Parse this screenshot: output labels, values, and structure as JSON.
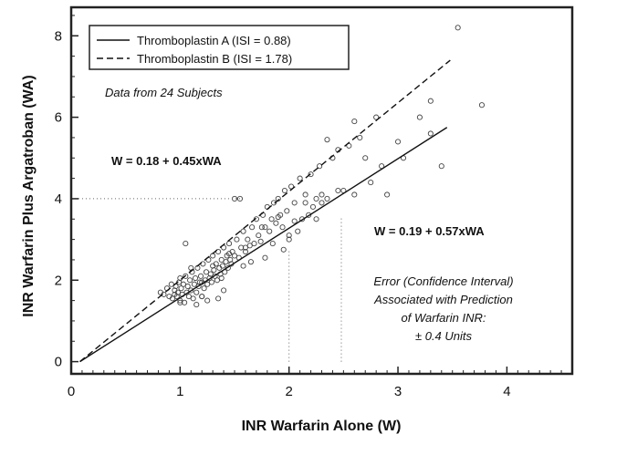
{
  "chart_data": {
    "type": "scatter",
    "xlabel": "INR Warfarin Alone (W)",
    "ylabel": "INR Warfarin Plus Argatroban (WA)",
    "xlim": [
      0,
      4.6
    ],
    "ylim": [
      -0.3,
      8.7
    ],
    "xticks": [
      0,
      1,
      2,
      3,
      4
    ],
    "yticks": [
      0,
      2,
      4,
      6,
      8
    ],
    "grid": false,
    "legend_position": "top-left",
    "lines": [
      {
        "name": "Thromboplastin A (ISI = 0.88)",
        "style": "solid",
        "x": [
          0.08,
          3.45
        ],
        "y": [
          0.0,
          5.75
        ]
      },
      {
        "name": "Thromboplastin B (ISI = 1.78)",
        "style": "dashed",
        "x": [
          0.08,
          3.48
        ],
        "y": [
          0.0,
          7.4
        ]
      }
    ],
    "annotations": {
      "data_note": "Data from 24 Subjects",
      "equation_b": "W = 0.18 + 0.45xWA",
      "equation_a": "W = 0.19 + 0.57xWA",
      "error_lines": [
        "Error (Confidence Interval)",
        "Associated with Prediction",
        "of Warfarin INR:",
        "± 0.4 Units"
      ]
    },
    "reference_lines": [
      {
        "orientation": "horizontal",
        "y": 4.0,
        "x_from": 0,
        "x_to": 1.55
      },
      {
        "orientation": "vertical",
        "x": 2.0,
        "y_from": 0,
        "y_to": 2.75
      },
      {
        "orientation": "vertical",
        "x": 2.48,
        "y_from": 0,
        "y_to": 3.55
      }
    ],
    "series": [
      {
        "name": "Subjects",
        "x": [
          0.82,
          0.85,
          0.88,
          0.9,
          0.92,
          0.93,
          0.95,
          0.96,
          0.97,
          0.98,
          0.99,
          1.0,
          1.0,
          1.01,
          1.02,
          1.03,
          1.04,
          1.05,
          1.06,
          1.07,
          1.08,
          1.09,
          1.1,
          1.11,
          1.12,
          1.13,
          1.14,
          1.15,
          1.16,
          1.17,
          1.18,
          1.19,
          1.2,
          1.21,
          1.22,
          1.23,
          1.24,
          1.25,
          1.26,
          1.27,
          1.28,
          1.29,
          1.3,
          1.31,
          1.32,
          1.33,
          1.34,
          1.35,
          1.36,
          1.37,
          1.38,
          1.39,
          1.4,
          1.41,
          1.42,
          1.43,
          1.44,
          1.45,
          1.46,
          1.47,
          1.48,
          1.5,
          1.52,
          1.54,
          1.56,
          1.58,
          1.6,
          1.62,
          1.64,
          1.66,
          1.68,
          1.7,
          1.72,
          1.74,
          1.76,
          1.78,
          1.8,
          1.82,
          1.84,
          1.86,
          1.88,
          1.9,
          1.92,
          1.94,
          1.96,
          1.98,
          2.0,
          2.02,
          2.05,
          2.08,
          2.1,
          2.12,
          2.15,
          2.18,
          2.2,
          2.22,
          2.25,
          2.28,
          2.3,
          2.35,
          2.4,
          2.45,
          2.5,
          2.55,
          2.6,
          2.65,
          2.7,
          2.75,
          2.85,
          2.9,
          3.0,
          3.05,
          3.2,
          3.3,
          3.3,
          3.4,
          3.55,
          3.77,
          2.35,
          2.45,
          2.6,
          2.8,
          1.5,
          1.55,
          1.05,
          1.1,
          1.15,
          1.25,
          1.35,
          0.95,
          1.3,
          1.45,
          1.6,
          1.75,
          1.85,
          2.0,
          2.15,
          2.3,
          1.2,
          1.4,
          1.65,
          1.9,
          2.05,
          2.25,
          1.0,
          1.2,
          1.38,
          1.58,
          1.78,
          1.95
        ],
        "y": [
          1.7,
          1.65,
          1.8,
          1.6,
          1.9,
          1.55,
          1.75,
          1.85,
          1.6,
          1.7,
          1.95,
          1.5,
          2.05,
          1.8,
          1.65,
          1.9,
          1.45,
          2.1,
          1.7,
          1.85,
          1.6,
          2.0,
          1.75,
          2.2,
          1.55,
          1.9,
          2.05,
          1.7,
          2.3,
          1.85,
          1.95,
          2.1,
          1.6,
          2.4,
          1.8,
          2.0,
          2.2,
          1.9,
          2.5,
          2.05,
          2.15,
          1.95,
          2.6,
          2.25,
          2.1,
          2.4,
          2.0,
          2.7,
          2.3,
          2.15,
          2.5,
          2.35,
          2.8,
          2.2,
          2.45,
          2.6,
          2.3,
          2.9,
          2.5,
          2.4,
          2.7,
          2.6,
          3.0,
          2.55,
          2.8,
          3.2,
          2.7,
          3.0,
          2.85,
          3.3,
          2.9,
          3.5,
          3.1,
          2.95,
          3.6,
          3.3,
          3.8,
          3.2,
          3.5,
          3.9,
          3.4,
          4.0,
          3.6,
          3.3,
          4.2,
          3.7,
          3.0,
          4.3,
          3.9,
          3.2,
          4.5,
          3.5,
          4.1,
          3.6,
          4.6,
          3.8,
          3.5,
          4.8,
          3.9,
          4.0,
          5.0,
          4.2,
          4.2,
          5.3,
          4.1,
          5.5,
          5.0,
          4.4,
          4.8,
          4.1,
          5.4,
          5.0,
          6.0,
          6.4,
          5.6,
          4.8,
          8.2,
          6.3,
          5.45,
          5.2,
          5.9,
          6.0,
          4.0,
          4.0,
          2.9,
          2.3,
          1.4,
          1.5,
          1.55,
          1.65,
          2.35,
          2.65,
          2.8,
          3.3,
          2.9,
          3.1,
          3.9,
          4.1,
          1.6,
          1.75,
          2.45,
          3.55,
          3.45,
          4.0,
          1.45,
          1.95,
          2.05,
          2.35,
          2.55,
          2.75
        ]
      }
    ]
  }
}
